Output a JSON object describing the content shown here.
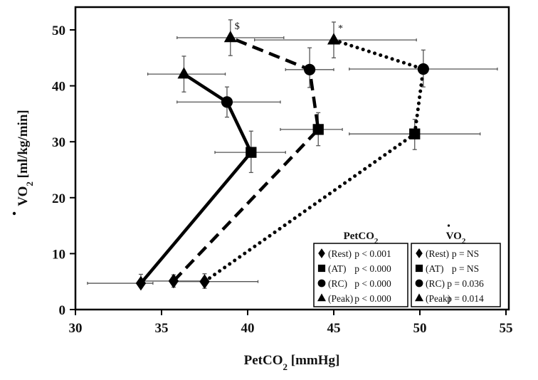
{
  "chart_data": {
    "type": "scatter",
    "title": "",
    "xlabel": "PetCO",
    "xlabel_sub": "2",
    "xlabel_unit": " [mmHg]",
    "ylabel": "VO",
    "ylabel_sub": "2",
    "ylabel_unit": " [ml/kg/min]",
    "ylabel_dot": true,
    "xlim": [
      30,
      55
    ],
    "ylim": [
      0,
      53
    ],
    "xticks": [
      30,
      35,
      40,
      45,
      50,
      55
    ],
    "yticks": [
      0,
      10,
      20,
      30,
      40,
      50
    ],
    "grid": false,
    "categories": [
      "Rest",
      "AT",
      "RC",
      "Peak"
    ],
    "markers": [
      "diamond",
      "square",
      "circle",
      "triangle"
    ],
    "series": [
      {
        "name": "solid",
        "line_style": "solid",
        "points": [
          {
            "stage": "Rest",
            "x": 33.8,
            "y": 4.7,
            "x_err": [
              30.7,
              34.5
            ],
            "y_err": [
              4.1,
              6.3
            ]
          },
          {
            "stage": "AT",
            "x": 40.2,
            "y": 28.1,
            "x_err": [
              38.1,
              42.2
            ],
            "y_err": [
              24.5,
              31.9
            ]
          },
          {
            "stage": "RC",
            "x": 38.8,
            "y": 37.1,
            "x_err": [
              35.9,
              41.9
            ],
            "y_err": [
              34.4,
              39.8
            ]
          },
          {
            "stage": "Peak",
            "x": 36.3,
            "y": 42.1,
            "x_err": [
              34.2,
              38.7
            ],
            "y_err": [
              38.9,
              45.3
            ]
          }
        ]
      },
      {
        "name": "dashed",
        "line_style": "dashed",
        "points": [
          {
            "stage": "Rest",
            "x": 35.7,
            "y": 5.1,
            "x_err": [
              34.0,
              37.4
            ],
            "y_err": [
              4.0,
              6.2
            ]
          },
          {
            "stage": "AT",
            "x": 44.1,
            "y": 32.2,
            "x_err": [
              41.9,
              45.5
            ],
            "y_err": [
              29.3,
              35.2
            ]
          },
          {
            "stage": "RC",
            "x": 43.6,
            "y": 42.9,
            "x_err": [
              42.2,
              45.0
            ],
            "y_err": [
              39.7,
              46.8
            ]
          },
          {
            "stage": "Peak",
            "x": 39.0,
            "y": 48.6,
            "x_err": [
              35.9,
              42.1
            ],
            "y_err": [
              45.4,
              51.8
            ],
            "annotation": "$"
          }
        ]
      },
      {
        "name": "dotted",
        "line_style": "dotted",
        "points": [
          {
            "stage": "Rest",
            "x": 37.5,
            "y": 5.0,
            "x_err": [
              35.8,
              40.6
            ],
            "y_err": [
              3.8,
              6.4
            ]
          },
          {
            "stage": "AT",
            "x": 49.7,
            "y": 31.4,
            "x_err": [
              45.9,
              53.5
            ],
            "y_err": [
              28.6,
              34.0
            ]
          },
          {
            "stage": "RC",
            "x": 50.2,
            "y": 43.0,
            "x_err": [
              45.9,
              54.5
            ],
            "y_err": [
              39.8,
              46.4
            ]
          },
          {
            "stage": "Peak",
            "x": 45.0,
            "y": 48.2,
            "x_err": [
              40.4,
              49.8
            ],
            "y_err": [
              45.0,
              51.4
            ],
            "annotation": "*"
          }
        ]
      }
    ],
    "legends": [
      {
        "title": "PetCO",
        "title_sub": "2",
        "title_dot": false,
        "placement": "bottom-right",
        "entries": [
          {
            "marker": "diamond",
            "label": "(Rest)",
            "p": "p < 0.001"
          },
          {
            "marker": "square",
            "label": "(AT)",
            "p": "p < 0.000"
          },
          {
            "marker": "circle",
            "label": "(RC)",
            "p": "p < 0.000"
          },
          {
            "marker": "triangle",
            "label": "(Peak)",
            "p": "p < 0.000"
          }
        ]
      },
      {
        "title": "VO",
        "title_sub": "2",
        "title_dot": true,
        "placement": "bottom-right",
        "entries": [
          {
            "marker": "diamond",
            "label": "(Rest)",
            "p": "p = NS"
          },
          {
            "marker": "square",
            "label": "(AT)",
            "p": "p = NS"
          },
          {
            "marker": "circle",
            "label": "(RC)",
            "p": "p = 0.036"
          },
          {
            "marker": "triangle",
            "label": "(Peak)",
            "p": "p = 0.014"
          }
        ]
      }
    ]
  },
  "colors": {
    "ink": "#000000",
    "error_bar": "#555555",
    "background": "#ffffff"
  }
}
